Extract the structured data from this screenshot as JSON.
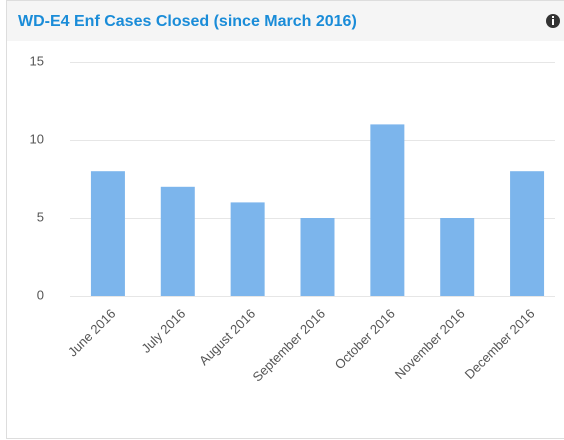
{
  "chart_data": {
    "type": "bar",
    "title": "WD-E4 Enf Cases Closed (since March 2016)",
    "categories": [
      "June 2016",
      "July 2016",
      "August 2016",
      "September 2016",
      "October 2016",
      "November 2016",
      "December 2016"
    ],
    "values": [
      8,
      7,
      6,
      5,
      11,
      5,
      8
    ],
    "color": "#7cb5ec",
    "ylim": [
      0,
      15
    ],
    "yticks": [
      0,
      5,
      10,
      15
    ],
    "grid": true
  }
}
